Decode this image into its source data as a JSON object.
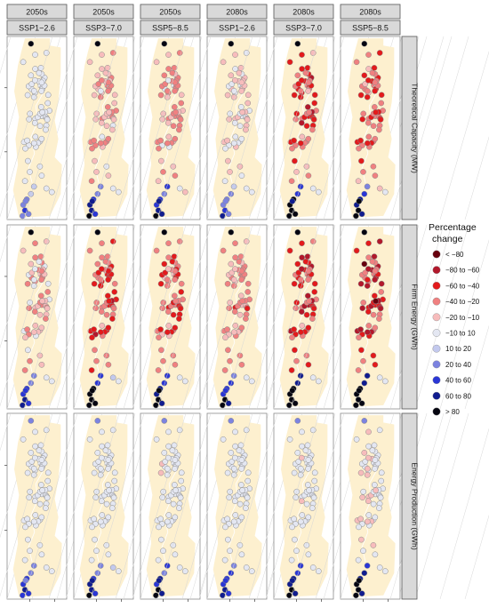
{
  "chart_data": {
    "type": "map",
    "columns": [
      {
        "period": "2050s",
        "scenario": "SSP1−2.6"
      },
      {
        "period": "2050s",
        "scenario": "SSP3−7.0"
      },
      {
        "period": "2050s",
        "scenario": "SSP5−8.5"
      },
      {
        "period": "2080s",
        "scenario": "SSP1−2.6"
      },
      {
        "period": "2080s",
        "scenario": "SSP3−7.0"
      },
      {
        "period": "2080s",
        "scenario": "SSP5−8.5"
      }
    ],
    "rows": [
      {
        "label": "Theoretical Capacity (MW)",
        "intensity": [
          0,
          0.45,
          0.55,
          0.2,
          1.0,
          0.9
        ],
        "north_shift": -0.6,
        "south_shift": 0.6
      },
      {
        "label": "Firm Energy (GWh)",
        "intensity": [
          0.35,
          1.0,
          0.8,
          0.55,
          1.15,
          1.25
        ],
        "north_shift": -1.2,
        "south_shift": 1.0
      },
      {
        "label": "Energy Production (GWh)",
        "intensity": [
          0.2,
          0.4,
          0.55,
          0.3,
          0.55,
          0.85
        ],
        "north_shift": 0.4,
        "south_shift": 1.2
      }
    ],
    "legend": {
      "title_lines": [
        "Percentage",
        "change"
      ],
      "classes": [
        {
          "label": "< −80",
          "color": "#67000d"
        },
        {
          "label": "−80 to −60",
          "color": "#b2182b"
        },
        {
          "label": "−60 to −40",
          "color": "#e31a1c"
        },
        {
          "label": "−40 to −20",
          "color": "#f08080"
        },
        {
          "label": "−20 to −10",
          "color": "#f7bcbc"
        },
        {
          "label": "−10 to 10",
          "color": "#e4e7f2"
        },
        {
          "label": "10 to 20",
          "color": "#c3c9ee"
        },
        {
          "label": "20 to 40",
          "color": "#7c83e0"
        },
        {
          "label": "40 to 60",
          "color": "#2a36d6"
        },
        {
          "label": "60 to 80",
          "color": "#101c8f"
        },
        {
          "label": "> 80",
          "color": "#050510"
        }
      ]
    },
    "panel_background": "#fdf0cf",
    "panel_border": "#8c8c8c",
    "strip_fill": "#d9d9d9"
  }
}
